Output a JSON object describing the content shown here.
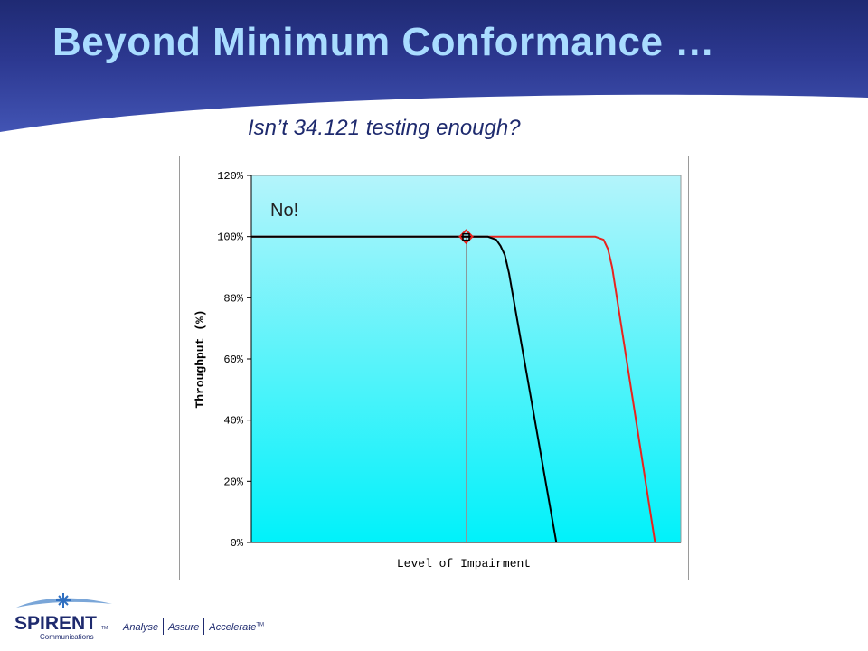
{
  "slide": {
    "title": "Beyond Minimum Conformance …",
    "subtitle": "Isn’t 34.121 testing enough?"
  },
  "colors": {
    "header_dark": "#1f2a73",
    "header_light": "#3d4fb0",
    "title_text": "#a9dcff",
    "plot_top": "#b4f4fb",
    "plot_bottom": "#00f2fa",
    "series_red": "#e8231e",
    "series_black": "#000000"
  },
  "chart_data": {
    "type": "line",
    "title": "",
    "xlabel": "Level of Impairment",
    "ylabel": "Throughput (%)",
    "ylim": [
      0,
      120
    ],
    "yticks": [
      0,
      20,
      40,
      60,
      80,
      100,
      120
    ],
    "ytick_labels": [
      "0%",
      "20%",
      "40%",
      "60%",
      "80%",
      "100%",
      "120%"
    ],
    "xlim": [
      0,
      100
    ],
    "xtick_labels": [],
    "grid": false,
    "legend": "none",
    "annotation": "No!",
    "series": [
      {
        "color": "#e8231e",
        "points": [
          [
            0,
            100
          ],
          [
            50,
            100
          ],
          [
            65,
            100
          ],
          [
            80,
            100
          ],
          [
            82,
            99
          ],
          [
            83,
            96
          ],
          [
            84,
            90
          ],
          [
            94,
            0
          ]
        ]
      },
      {
        "color": "#000000",
        "points": [
          [
            0,
            100
          ],
          [
            50,
            100
          ],
          [
            55,
            100
          ],
          [
            57,
            99
          ],
          [
            58,
            97
          ],
          [
            59,
            94
          ],
          [
            60,
            88
          ],
          [
            71,
            0
          ]
        ]
      }
    ],
    "markers": [
      {
        "x": 50,
        "y": 100,
        "shape": "diamond",
        "color": "#e8231e"
      },
      {
        "x": 50,
        "y": 100,
        "shape": "square",
        "color": "#000000"
      }
    ],
    "reference_line_x": 50
  },
  "footer": {
    "logo_word": "SPIRENT",
    "logo_sub": "Communications",
    "logo_tm": "TM",
    "tagline": [
      "Analyse",
      "Assure",
      "Accelerate"
    ],
    "tagline_tm": "TM"
  }
}
